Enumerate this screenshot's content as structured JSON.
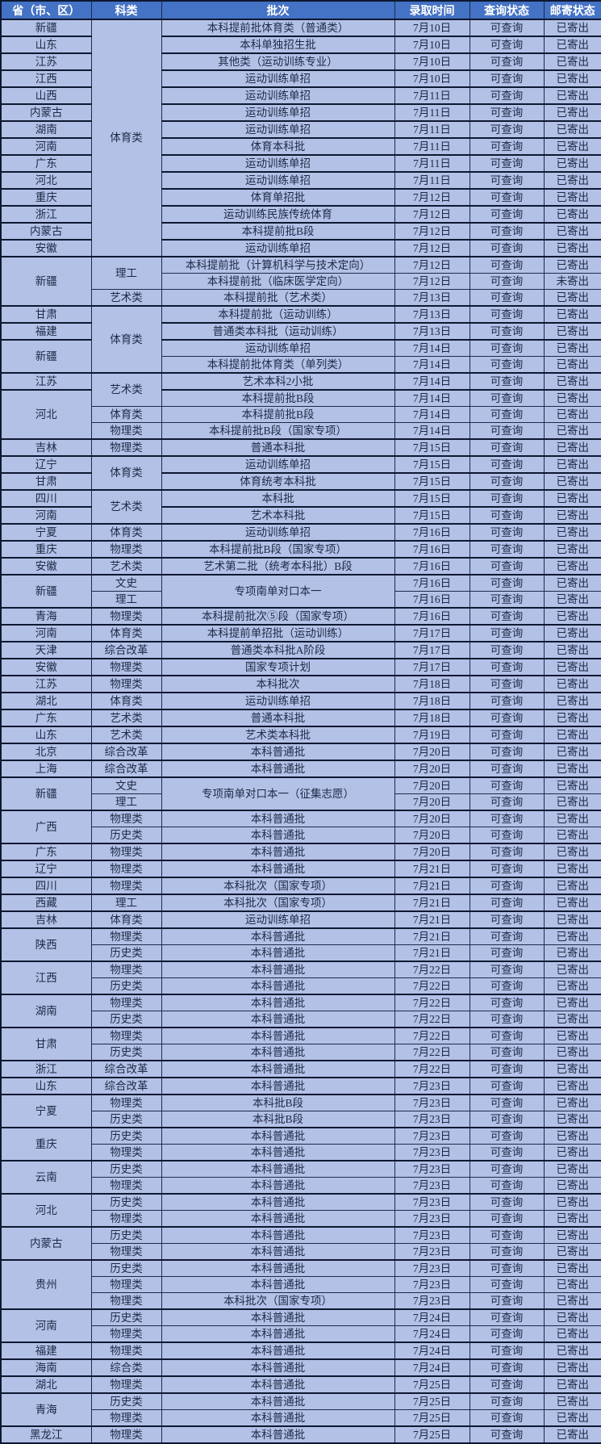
{
  "colors": {
    "header_bg": "#4472c4",
    "header_text": "#ffffff",
    "cell_bg": "#b3c1e7",
    "cell_text": "#1d2945",
    "border_thin": "#1c2b4a",
    "border_thick": "#0e1830"
  },
  "header": {
    "columns": [
      "省（市、区）",
      "科类",
      "批次",
      "录取时间",
      "查询状态",
      "邮寄状态"
    ]
  },
  "rows": [
    {
      "province": "新疆",
      "category": "体育类",
      "category_rowspan": 14,
      "batch": "本科提前批体育类（普通类）",
      "date": "7月10日",
      "query": "可查询",
      "mail": "已寄出"
    },
    {
      "province": "山东",
      "batch": "本科单独招生批",
      "date": "7月10日",
      "query": "可查询",
      "mail": "已寄出"
    },
    {
      "province": "江苏",
      "batch": "其他类（运动训练专业）",
      "date": "7月10日",
      "query": "可查询",
      "mail": "已寄出"
    },
    {
      "province": "江西",
      "batch": "运动训练单招",
      "date": "7月10日",
      "query": "可查询",
      "mail": "已寄出"
    },
    {
      "province": "山西",
      "batch": "运动训练单招",
      "date": "7月11日",
      "query": "可查询",
      "mail": "已寄出"
    },
    {
      "province": "内蒙古",
      "batch": "运动训练单招",
      "date": "7月11日",
      "query": "可查询",
      "mail": "已寄出"
    },
    {
      "province": "湖南",
      "batch": "运动训练单招",
      "date": "7月11日",
      "query": "可查询",
      "mail": "已寄出"
    },
    {
      "province": "河南",
      "batch": "体育本科批",
      "date": "7月11日",
      "query": "可查询",
      "mail": "已寄出"
    },
    {
      "province": "广东",
      "batch": "运动训练单招",
      "date": "7月11日",
      "query": "可查询",
      "mail": "已寄出"
    },
    {
      "province": "河北",
      "batch": "运动训练单招",
      "date": "7月11日",
      "query": "可查询",
      "mail": "已寄出"
    },
    {
      "province": "重庆",
      "batch": "体育单招批",
      "date": "7月12日",
      "query": "可查询",
      "mail": "已寄出"
    },
    {
      "province": "浙江",
      "batch": "运动训练民族传统体育",
      "date": "7月12日",
      "query": "可查询",
      "mail": "已寄出"
    },
    {
      "province": "内蒙古",
      "batch": "本科提前批B段",
      "date": "7月12日",
      "query": "可查询",
      "mail": "已寄出"
    },
    {
      "province": "安徽",
      "batch": "运动训练单招",
      "date": "7月12日",
      "query": "可查询",
      "mail": "已寄出"
    },
    {
      "province": "新疆",
      "province_rowspan": 3,
      "category": "理工",
      "category_rowspan": 2,
      "batch": "本科提前批（计算机科学与技术定向）",
      "date": "7月12日",
      "query": "可查询",
      "mail": "已寄出"
    },
    {
      "batch": "本科提前批（临床医学定向）",
      "date": "7月12日",
      "query": "可查询",
      "mail": "未寄出"
    },
    {
      "category": "艺术类",
      "batch": "本科提前批（艺术类）",
      "date": "7月13日",
      "query": "可查询",
      "mail": "已寄出"
    },
    {
      "province": "甘肃",
      "category": "体育类",
      "category_rowspan": 4,
      "batch": "本科提前批（运动训练）",
      "date": "7月13日",
      "query": "可查询",
      "mail": "已寄出"
    },
    {
      "province": "福建",
      "batch": "普通类本科批（运动训练）",
      "date": "7月13日",
      "query": "可查询",
      "mail": "已寄出"
    },
    {
      "province": "新疆",
      "province_rowspan": 2,
      "batch": "运动训练单招",
      "date": "7月14日",
      "query": "可查询",
      "mail": "已寄出"
    },
    {
      "batch": "本科提前批体育类（单列类）",
      "date": "7月14日",
      "query": "可查询",
      "mail": "已寄出"
    },
    {
      "province": "江苏",
      "category": "艺术类",
      "category_rowspan": 2,
      "batch": "艺术本科2小批",
      "date": "7月14日",
      "query": "可查询",
      "mail": "已寄出"
    },
    {
      "province": "河北",
      "province_rowspan": 3,
      "batch": "本科提前批B段",
      "date": "7月14日",
      "query": "可查询",
      "mail": "已寄出"
    },
    {
      "category": "体育类",
      "batch": "本科提前批B段",
      "date": "7月14日",
      "query": "可查询",
      "mail": "已寄出"
    },
    {
      "category": "物理类",
      "batch": "本科提前批B段（国家专项）",
      "date": "7月14日",
      "query": "可查询",
      "mail": "已寄出"
    },
    {
      "province": "吉林",
      "category": "物理类",
      "batch": "普通本科批",
      "date": "7月15日",
      "query": "可查询",
      "mail": "已寄出"
    },
    {
      "province": "辽宁",
      "category": "体育类",
      "category_rowspan": 2,
      "batch": "运动训练单招",
      "date": "7月15日",
      "query": "可查询",
      "mail": "已寄出"
    },
    {
      "province": "甘肃",
      "batch": "体育统考本科批",
      "date": "7月15日",
      "query": "可查询",
      "mail": "已寄出"
    },
    {
      "province": "四川",
      "category": "艺术类",
      "category_rowspan": 2,
      "batch": "本科批",
      "date": "7月15日",
      "query": "可查询",
      "mail": "已寄出"
    },
    {
      "province": "河南",
      "batch": "艺术本科批",
      "date": "7月15日",
      "query": "可查询",
      "mail": "已寄出"
    },
    {
      "province": "宁夏",
      "category": "体育类",
      "batch": "运动训练单招",
      "date": "7月16日",
      "query": "可查询",
      "mail": "已寄出"
    },
    {
      "province": "重庆",
      "category": "物理类",
      "batch": "本科提前批B段（国家专项）",
      "date": "7月16日",
      "query": "可查询",
      "mail": "已寄出"
    },
    {
      "province": "安徽",
      "category": "艺术类",
      "batch": "艺术第二批（统考本科批）B段",
      "date": "7月16日",
      "query": "可查询",
      "mail": "已寄出"
    },
    {
      "province": "新疆",
      "province_rowspan": 2,
      "category": "文史",
      "batch": "专项南单对口本一",
      "batch_rowspan": 2,
      "date": "7月16日",
      "query": "可查询",
      "mail": "已寄出"
    },
    {
      "category": "理工",
      "date": "7月16日",
      "query": "可查询",
      "mail": "已寄出"
    },
    {
      "province": "青海",
      "category": "物理类",
      "batch": "本科提前批次⑤段（国家专项）",
      "date": "7月16日",
      "query": "可查询",
      "mail": "已寄出"
    },
    {
      "province": "河南",
      "category": "体育类",
      "batch": "本科提前单招批（运动训练）",
      "date": "7月17日",
      "query": "可查询",
      "mail": "已寄出"
    },
    {
      "province": "天津",
      "category": "综合改革",
      "batch": "普通类本科批A阶段",
      "date": "7月17日",
      "query": "可查询",
      "mail": "已寄出"
    },
    {
      "province": "安徽",
      "category": "物理类",
      "batch": "国家专项计划",
      "date": "7月17日",
      "query": "可查询",
      "mail": "已寄出"
    },
    {
      "province": "江苏",
      "category": "物理类",
      "batch": "本科批次",
      "date": "7月18日",
      "query": "可查询",
      "mail": "已寄出"
    },
    {
      "province": "湖北",
      "category": "体育类",
      "batch": "运动训练单招",
      "date": "7月18日",
      "query": "可查询",
      "mail": "已寄出"
    },
    {
      "province": "广东",
      "category": "艺术类",
      "batch": "普通本科批",
      "date": "7月18日",
      "query": "可查询",
      "mail": "已寄出"
    },
    {
      "province": "山东",
      "category": "艺术类",
      "batch": "艺术类本科批",
      "date": "7月19日",
      "query": "可查询",
      "mail": "已寄出"
    },
    {
      "province": "北京",
      "category": "综合改革",
      "batch": "本科普通批",
      "date": "7月20日",
      "query": "可查询",
      "mail": "已寄出"
    },
    {
      "province": "上海",
      "category": "综合改革",
      "batch": "本科普通批",
      "date": "7月20日",
      "query": "可查询",
      "mail": "已寄出"
    },
    {
      "province": "新疆",
      "province_rowspan": 2,
      "category": "文史",
      "batch": "专项南单对口本一（征集志愿）",
      "batch_rowspan": 2,
      "date": "7月20日",
      "query": "可查询",
      "mail": "已寄出"
    },
    {
      "category": "理工",
      "date": "7月20日",
      "query": "可查询",
      "mail": "已寄出"
    },
    {
      "province": "广西",
      "province_rowspan": 2,
      "category": "物理类",
      "batch": "本科普通批",
      "date": "7月20日",
      "query": "可查询",
      "mail": "已寄出"
    },
    {
      "category": "历史类",
      "batch": "本科普通批",
      "date": "7月20日",
      "query": "可查询",
      "mail": "已寄出"
    },
    {
      "province": "广东",
      "category": "物理类",
      "batch": "本科普通批",
      "date": "7月20日",
      "query": "可查询",
      "mail": "已寄出"
    },
    {
      "province": "辽宁",
      "category": "物理类",
      "batch": "本科普通批",
      "date": "7月21日",
      "query": "可查询",
      "mail": "已寄出"
    },
    {
      "province": "四川",
      "category": "物理类",
      "batch": "本科批次（国家专项）",
      "date": "7月21日",
      "query": "可查询",
      "mail": "已寄出"
    },
    {
      "province": "西藏",
      "category": "理工",
      "batch": "本科批次（国家专项）",
      "date": "7月21日",
      "query": "可查询",
      "mail": "已寄出"
    },
    {
      "province": "吉林",
      "category": "体育类",
      "batch": "运动训练单招",
      "date": "7月21日",
      "query": "可查询",
      "mail": "已寄出"
    },
    {
      "province": "陕西",
      "province_rowspan": 2,
      "category": "物理类",
      "batch": "本科普通批",
      "date": "7月21日",
      "query": "可查询",
      "mail": "已寄出"
    },
    {
      "category": "历史类",
      "batch": "本科普通批",
      "date": "7月21日",
      "query": "可查询",
      "mail": "已寄出"
    },
    {
      "province": "江西",
      "province_rowspan": 2,
      "category": "物理类",
      "batch": "本科普通批",
      "date": "7月22日",
      "query": "可查询",
      "mail": "已寄出"
    },
    {
      "category": "历史类",
      "batch": "本科普通批",
      "date": "7月22日",
      "query": "可查询",
      "mail": "已寄出"
    },
    {
      "province": "湖南",
      "province_rowspan": 2,
      "category": "物理类",
      "batch": "本科普通批",
      "date": "7月22日",
      "query": "可查询",
      "mail": "已寄出"
    },
    {
      "category": "历史类",
      "batch": "本科普通批",
      "date": "7月22日",
      "query": "可查询",
      "mail": "已寄出"
    },
    {
      "province": "甘肃",
      "province_rowspan": 2,
      "category": "物理类",
      "batch": "本科普通批",
      "date": "7月22日",
      "query": "可查询",
      "mail": "已寄出"
    },
    {
      "category": "历史类",
      "batch": "本科普通批",
      "date": "7月22日",
      "query": "可查询",
      "mail": "已寄出"
    },
    {
      "province": "浙江",
      "category": "综合改革",
      "batch": "本科普通批",
      "date": "7月22日",
      "query": "可查询",
      "mail": "已寄出"
    },
    {
      "province": "山东",
      "category": "综合改革",
      "batch": "本科普通批",
      "date": "7月23日",
      "query": "可查询",
      "mail": "已寄出"
    },
    {
      "province": "宁夏",
      "province_rowspan": 2,
      "category": "物理类",
      "batch": "本科批B段",
      "date": "7月23日",
      "query": "可查询",
      "mail": "已寄出"
    },
    {
      "category": "历史类",
      "batch": "本科批B段",
      "date": "7月23日",
      "query": "可查询",
      "mail": "已寄出"
    },
    {
      "province": "重庆",
      "province_rowspan": 2,
      "category": "历史类",
      "batch": "本科普通批",
      "date": "7月23日",
      "query": "可查询",
      "mail": "已寄出"
    },
    {
      "category": "物理类",
      "batch": "本科普通批",
      "date": "7月23日",
      "query": "可查询",
      "mail": "已寄出"
    },
    {
      "province": "云南",
      "province_rowspan": 2,
      "category": "历史类",
      "batch": "本科普通批",
      "date": "7月23日",
      "query": "可查询",
      "mail": "已寄出"
    },
    {
      "category": "物理类",
      "batch": "本科普通批",
      "date": "7月23日",
      "query": "可查询",
      "mail": "已寄出"
    },
    {
      "province": "河北",
      "province_rowspan": 2,
      "category": "历史类",
      "batch": "本科普通批",
      "date": "7月23日",
      "query": "可查询",
      "mail": "已寄出"
    },
    {
      "category": "物理类",
      "batch": "本科普通批",
      "date": "7月23日",
      "query": "可查询",
      "mail": "已寄出"
    },
    {
      "province": "内蒙古",
      "province_rowspan": 2,
      "category": "历史类",
      "batch": "本科普通批",
      "date": "7月23日",
      "query": "可查询",
      "mail": "已寄出"
    },
    {
      "category": "物理类",
      "batch": "本科普通批",
      "date": "7月23日",
      "query": "可查询",
      "mail": "已寄出"
    },
    {
      "province": "贵州",
      "province_rowspan": 3,
      "category": "历史类",
      "batch": "本科普通批",
      "date": "7月23日",
      "query": "可查询",
      "mail": "已寄出"
    },
    {
      "category": "物理类",
      "batch": "本科普通批",
      "date": "7月23日",
      "query": "可查询",
      "mail": "已寄出"
    },
    {
      "category": "物理类",
      "batch": "本科批次（国家专项）",
      "date": "7月23日",
      "query": "可查询",
      "mail": "已寄出"
    },
    {
      "province": "河南",
      "province_rowspan": 2,
      "category": "历史类",
      "batch": "本科普通批",
      "date": "7月24日",
      "query": "可查询",
      "mail": "已寄出"
    },
    {
      "category": "物理类",
      "batch": "本科普通批",
      "date": "7月24日",
      "query": "可查询",
      "mail": "已寄出"
    },
    {
      "province": "福建",
      "category": "物理类",
      "batch": "本科普通批",
      "date": "7月24日",
      "query": "可查询",
      "mail": "已寄出"
    },
    {
      "province": "海南",
      "category": "综合类",
      "batch": "本科普通批",
      "date": "7月24日",
      "query": "可查询",
      "mail": "已寄出"
    },
    {
      "province": "湖北",
      "category": "物理类",
      "batch": "本科普通批",
      "date": "7月25日",
      "query": "可查询",
      "mail": "已寄出"
    },
    {
      "province": "青海",
      "province_rowspan": 2,
      "category": "历史类",
      "batch": "本科普通批",
      "date": "7月25日",
      "query": "可查询",
      "mail": "已寄出"
    },
    {
      "category": "物理类",
      "batch": "本科普通批",
      "date": "7月25日",
      "query": "可查询",
      "mail": "已寄出"
    },
    {
      "province": "黑龙江",
      "category": "物理类",
      "batch": "本科普通批",
      "date": "7月25日",
      "query": "可查询",
      "mail": "已寄出"
    }
  ]
}
